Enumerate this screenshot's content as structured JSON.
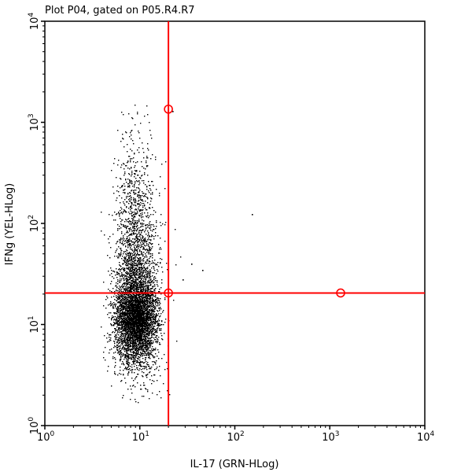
{
  "chart_data": {
    "type": "scatter",
    "title": "Plot P04, gated on P05.R4.R7",
    "xlabel": "IL-17 (GRN-HLog)",
    "ylabel": "IFNg (YEL-HLog)",
    "x_scale": "log",
    "y_scale": "log",
    "xlim": [
      1,
      10000
    ],
    "ylim": [
      1,
      10000
    ],
    "x_ticks": [
      {
        "value": 1,
        "base": "10",
        "exp": "0"
      },
      {
        "value": 10,
        "base": "10",
        "exp": "1"
      },
      {
        "value": 100,
        "base": "10",
        "exp": "2"
      },
      {
        "value": 1000,
        "base": "10",
        "exp": "3"
      },
      {
        "value": 10000,
        "base": "10",
        "exp": "4"
      }
    ],
    "y_ticks": [
      {
        "value": 1,
        "base": "10",
        "exp": "0"
      },
      {
        "value": 10,
        "base": "10",
        "exp": "1"
      },
      {
        "value": 100,
        "base": "10",
        "exp": "2"
      },
      {
        "value": 1000,
        "base": "10",
        "exp": "3"
      },
      {
        "value": 10000,
        "base": "10",
        "exp": "4"
      }
    ],
    "grid": false,
    "population": {
      "center": [
        9,
        11
      ],
      "dense_core_y_range": [
        7,
        20
      ],
      "x_range": [
        3,
        40
      ],
      "y_range": [
        1.7,
        1600
      ],
      "approx_events": 7000,
      "color": "#000000"
    },
    "quadrant_gate": {
      "color": "#ff0000",
      "x_threshold": 20,
      "y_threshold": 20.5,
      "handles": [
        [
          20,
          1350
        ],
        [
          20,
          20.5
        ],
        [
          1300,
          20.5
        ]
      ]
    },
    "outliers": [
      [
        150,
        125
      ],
      [
        35,
        40
      ],
      [
        45,
        35
      ],
      [
        28,
        28
      ],
      [
        22,
        1300
      ]
    ]
  }
}
